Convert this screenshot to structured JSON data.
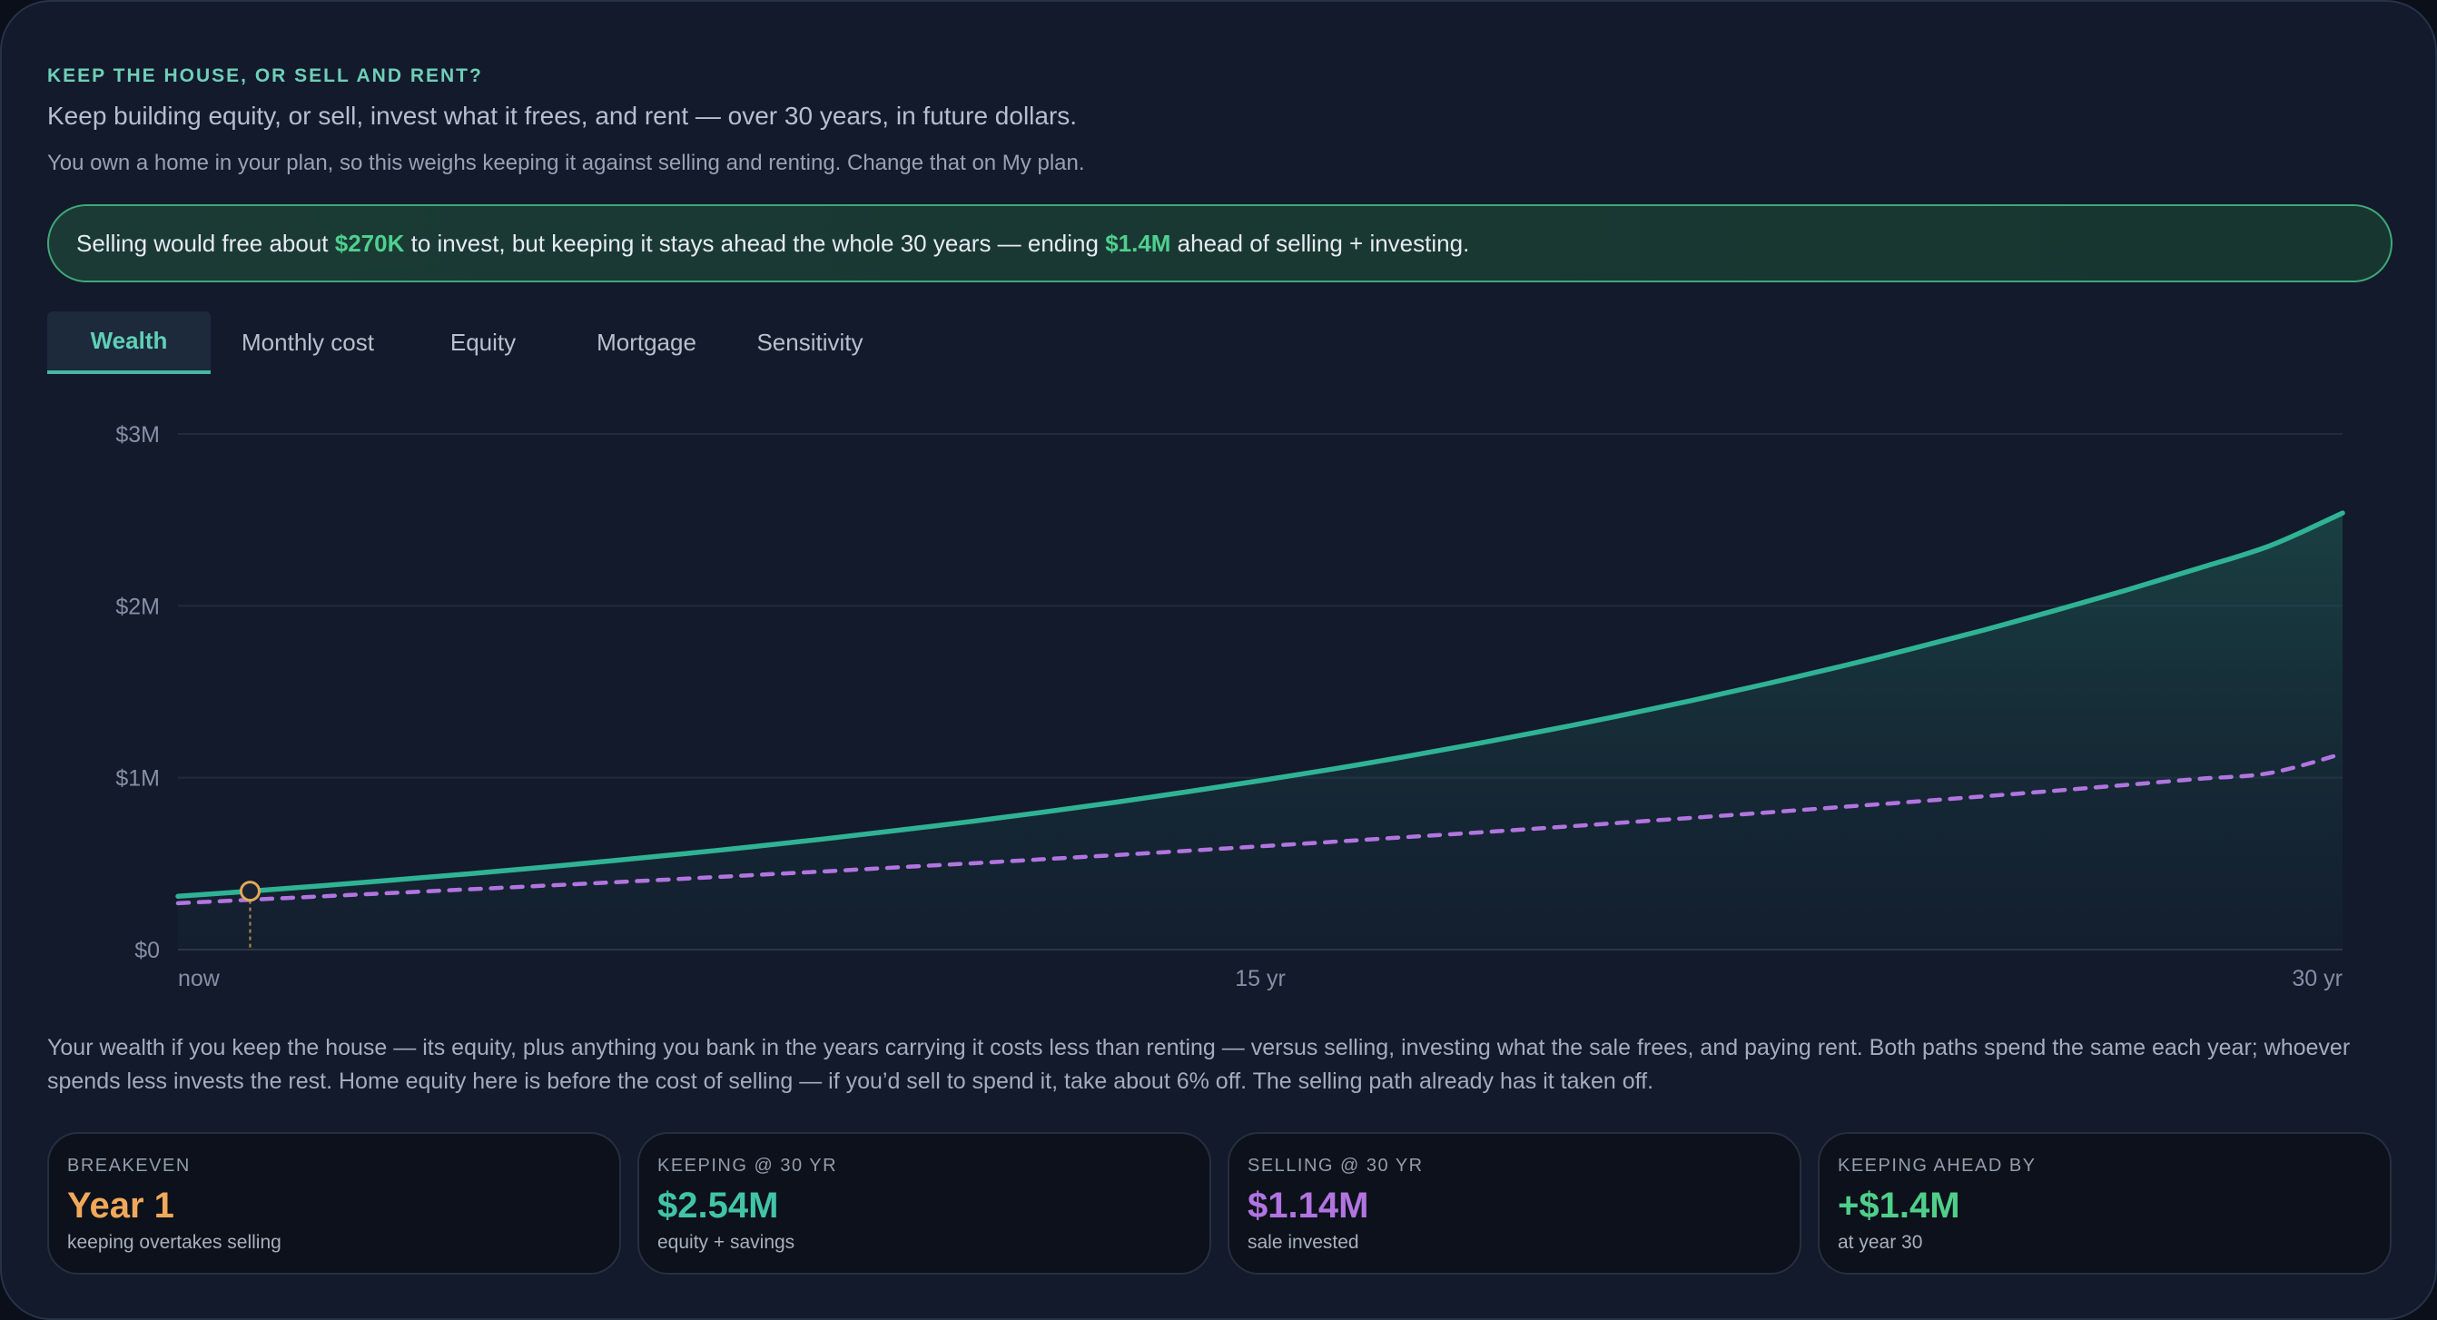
{
  "header": {
    "eyebrow": "KEEP THE HOUSE, OR SELL AND RENT?",
    "headline": "Keep building equity, or sell, invest what it frees, and rent — over 30 years, in future dollars.",
    "subline": "You own a home in your plan, so this weighs keeping it against selling and renting. Change that on My plan."
  },
  "banner": {
    "part1": "Selling would free about ",
    "amount1": "$270K",
    "part2": " to invest, but keeping it stays ahead the whole 30 years — ending ",
    "amount2": "$1.4M",
    "part3": " ahead of selling + investing."
  },
  "tabs": [
    {
      "label": "Wealth",
      "active": true
    },
    {
      "label": "Monthly cost",
      "active": false
    },
    {
      "label": "Equity",
      "active": false
    },
    {
      "label": "Mortgage",
      "active": false
    },
    {
      "label": "Sensitivity",
      "active": false
    }
  ],
  "chart_data": {
    "type": "line",
    "x": [
      0,
      1,
      2,
      3,
      4,
      5,
      6,
      7,
      8,
      9,
      10,
      11,
      12,
      13,
      14,
      15,
      16,
      17,
      18,
      19,
      20,
      21,
      22,
      23,
      24,
      25,
      26,
      27,
      28,
      29,
      30
    ],
    "x_tick_labels": [
      {
        "x": 0,
        "label": "now"
      },
      {
        "x": 15,
        "label": "15 yr"
      },
      {
        "x": 30,
        "label": "30 yr"
      }
    ],
    "y_ticks": [
      {
        "value": 0,
        "label": "$0"
      },
      {
        "value": 1000000,
        "label": "$1M"
      },
      {
        "value": 2000000,
        "label": "$2M"
      },
      {
        "value": 3000000,
        "label": "$3M"
      }
    ],
    "ylim": [
      0,
      3000000
    ],
    "xlim": [
      0,
      30
    ],
    "grid": true,
    "series": [
      {
        "name": "",
        "style": "solid",
        "color": "#2fb394",
        "values": [
          310000,
          340000,
          372000,
          405000,
          440000,
          477000,
          516000,
          557000,
          600000,
          646000,
          695000,
          746000,
          800000,
          858000,
          919000,
          983000,
          1050000,
          1122000,
          1198000,
          1278000,
          1362000,
          1451000,
          1545000,
          1643000,
          1747000,
          1856000,
          1971000,
          2091000,
          2218000,
          2351000,
          2540000
        ]
      },
      {
        "name": "",
        "style": "dashed",
        "color": "#b175e0",
        "values": [
          270000,
          290000,
          310000,
          330000,
          350000,
          370000,
          391000,
          412000,
          434000,
          456000,
          479000,
          502000,
          526000,
          550000,
          575000,
          601000,
          627000,
          654000,
          681000,
          709000,
          738000,
          767000,
          797000,
          828000,
          859000,
          891000,
          924000,
          958000,
          993000,
          1028000,
          1140000
        ]
      }
    ],
    "breakeven_marker": {
      "x": 1,
      "y": 340000,
      "color": "#e2a85a"
    }
  },
  "explanation": "Your wealth if you keep the house — its equity, plus anything you bank in the years carrying it costs less than renting — versus selling, investing what the sale frees, and paying rent. Both paths spend the same each year; whoever spends less invests the rest. Home equity here is before the cost of selling — if you’d sell to spend it, take about 6% off. The selling path already has it taken off.",
  "stats": [
    {
      "label": "BREAKEVEN",
      "value": "Year 1",
      "sub": "keeping overtakes selling",
      "color": "#f0a85a"
    },
    {
      "label": "KEEPING @ 30 YR",
      "value": "$2.54M",
      "sub": "equity + savings",
      "color": "#41c4a7"
    },
    {
      "label": "SELLING @ 30 YR",
      "value": "$1.14M",
      "sub": "sale invested",
      "color": "#b174e0"
    },
    {
      "label": "KEEPING AHEAD BY",
      "value": "+$1.4M",
      "sub": "at year 30",
      "color": "#4fcf8a"
    }
  ]
}
